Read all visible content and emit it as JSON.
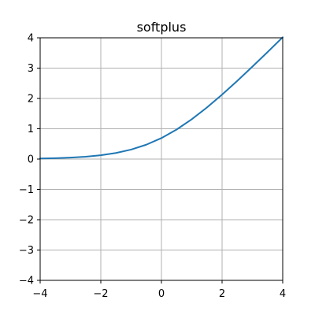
{
  "chart_data": {
    "type": "line",
    "title": "softplus",
    "xlabel": "",
    "ylabel": "",
    "xlim": [
      -4,
      4
    ],
    "ylim": [
      -4,
      4
    ],
    "xticks": [
      -4,
      -2,
      0,
      2,
      4
    ],
    "xtick_labels": [
      "−4",
      "−2",
      "0",
      "2",
      "4"
    ],
    "yticks": [
      -4,
      -3,
      -2,
      -1,
      0,
      1,
      2,
      3,
      4
    ],
    "ytick_labels": [
      "−4",
      "−3",
      "−2",
      "−1",
      "0",
      "1",
      "2",
      "3",
      "4"
    ],
    "grid": true,
    "series": [
      {
        "color": "#1f77b4",
        "x": [
          -4.0,
          -3.5,
          -3.0,
          -2.5,
          -2.0,
          -1.5,
          -1.0,
          -0.5,
          0.0,
          0.5,
          1.0,
          1.5,
          2.0,
          2.5,
          3.0,
          3.5,
          4.0
        ],
        "y": [
          0.018,
          0.03,
          0.049,
          0.079,
          0.127,
          0.201,
          0.313,
          0.474,
          0.693,
          0.974,
          1.313,
          1.701,
          2.127,
          2.579,
          3.049,
          3.53,
          4.018
        ]
      }
    ]
  }
}
